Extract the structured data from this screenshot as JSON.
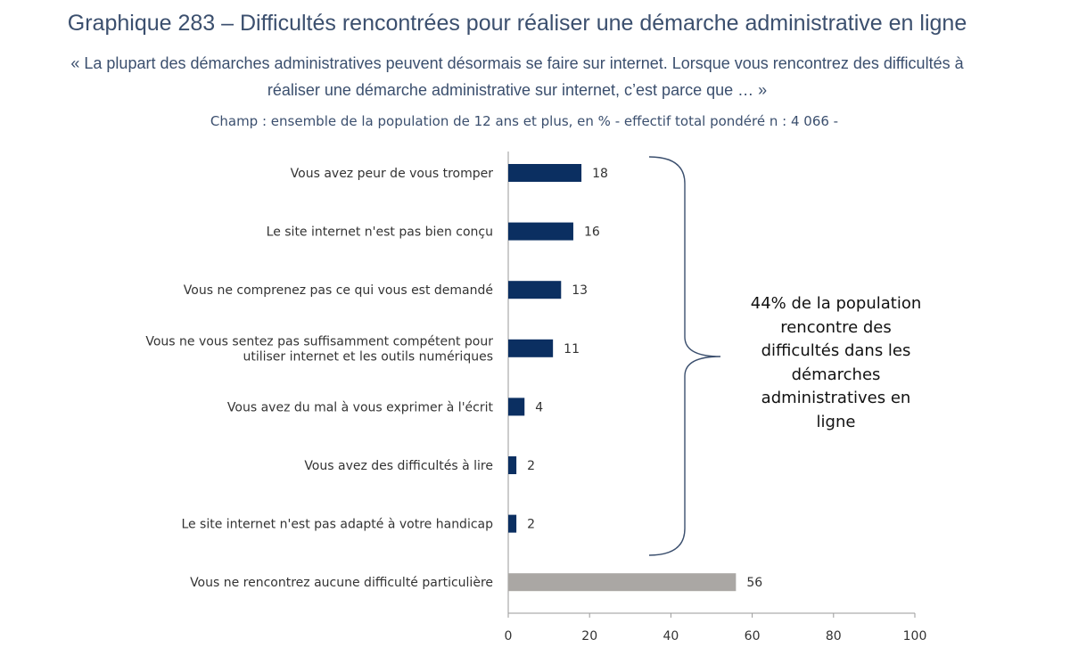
{
  "header": {
    "title": "Graphique 283 – Difficultés rencontrées pour réaliser une démarche administrative en ligne",
    "subtitle_line1": "« La plupart des démarches administratives peuvent désormais se faire sur internet. Lorsque vous rencontrez des difficultés à",
    "subtitle_line2": "réaliser une démarche administrative sur internet, c’est parce que … »",
    "champ": "Champ : ensemble de la population de 12 ans et plus, en % - effectif total pondéré n : 4 066 -"
  },
  "annotation": {
    "text": "44% de la population rencontre des difficultés dans les démarches administratives en ligne"
  },
  "colors": {
    "primary_bar": "#0b2f61",
    "other_bar": "#aaa7a4",
    "title_text": "#3b4f6e",
    "axis": "#9a9a9a",
    "brace": "#3b4f6e"
  },
  "chart_data": {
    "type": "bar",
    "orientation": "horizontal",
    "categories": [
      [
        "Vous avez peur de vous tromper"
      ],
      [
        "Le site internet n'est pas bien conçu"
      ],
      [
        "Vous ne comprenez pas ce qui vous est demandé"
      ],
      [
        "Vous ne vous sentez pas suffisamment compétent pour",
        "utiliser internet et les outils numériques"
      ],
      [
        "Vous avez du mal à vous exprimer à l'écrit"
      ],
      [
        "Vous avez des difficultés à lire"
      ],
      [
        "Le site internet n'est pas adapté à votre handicap"
      ],
      [
        "Vous ne rencontrez aucune difficulté particulière"
      ]
    ],
    "values": [
      18,
      16,
      13,
      11,
      4,
      2,
      2,
      56
    ],
    "bar_color_keys": [
      "primary_bar",
      "primary_bar",
      "primary_bar",
      "primary_bar",
      "primary_bar",
      "primary_bar",
      "primary_bar",
      "other_bar"
    ],
    "xlim": [
      0,
      100
    ],
    "xticks": [
      0,
      20,
      40,
      60,
      80,
      100
    ],
    "grid": false,
    "legend": "none",
    "data_labels": true
  }
}
